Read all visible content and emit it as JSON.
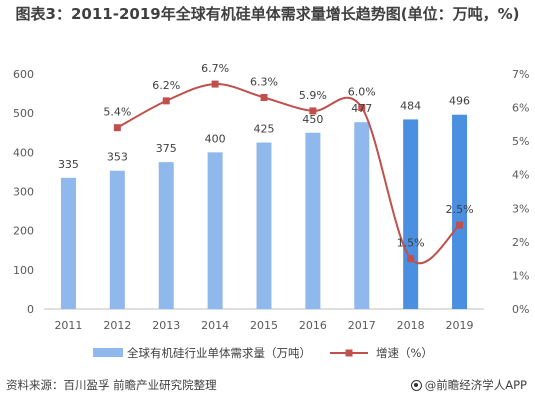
{
  "title": "图表3：2011-2019年全球有机硅单体需求量增长趋势图(单位：万吨，%)",
  "footer": {
    "source": "资料来源：百川盈孚 前瞻产业研究院整理",
    "brand": "@前瞻经济学人APP"
  },
  "colors": {
    "bar_light": "#8fb8ed",
    "bar_dark": "#4a8fe0",
    "line": "#c0504d",
    "axis": "#bfbfbf"
  },
  "chart_data": {
    "type": "bar",
    "title": "图表3：2011-2019年全球有机硅单体需求量增长趋势图(单位：万吨，%)",
    "categories": [
      "2011",
      "2012",
      "2013",
      "2014",
      "2015",
      "2016",
      "2017",
      "2018",
      "2019"
    ],
    "series": [
      {
        "name": "全球有机硅行业单体需求量（万吨）",
        "type": "bar",
        "axis": "left",
        "values": [
          335,
          353,
          375,
          400,
          425,
          450,
          477,
          484,
          496
        ],
        "labels": [
          "335",
          "353",
          "375",
          "400",
          "425",
          "450",
          "477",
          "484",
          "496"
        ]
      },
      {
        "name": "增速（%）",
        "type": "line",
        "axis": "right",
        "values": [
          null,
          5.4,
          6.2,
          6.7,
          6.3,
          5.9,
          6.0,
          1.5,
          2.5
        ],
        "labels": [
          "",
          "5.4%",
          "6.2%",
          "6.7%",
          "6.3%",
          "5.9%",
          "6.0%",
          "1.5%",
          "2.5%"
        ]
      }
    ],
    "ylim_left": [
      0,
      600
    ],
    "yticks_left": [
      "0",
      "100",
      "200",
      "300",
      "400",
      "500",
      "600"
    ],
    "ylim_right": [
      0,
      7
    ],
    "yticks_right": [
      "0%",
      "1%",
      "2%",
      "3%",
      "4%",
      "5%",
      "6%",
      "7%"
    ],
    "legend_position": "bottom",
    "grid": false
  }
}
